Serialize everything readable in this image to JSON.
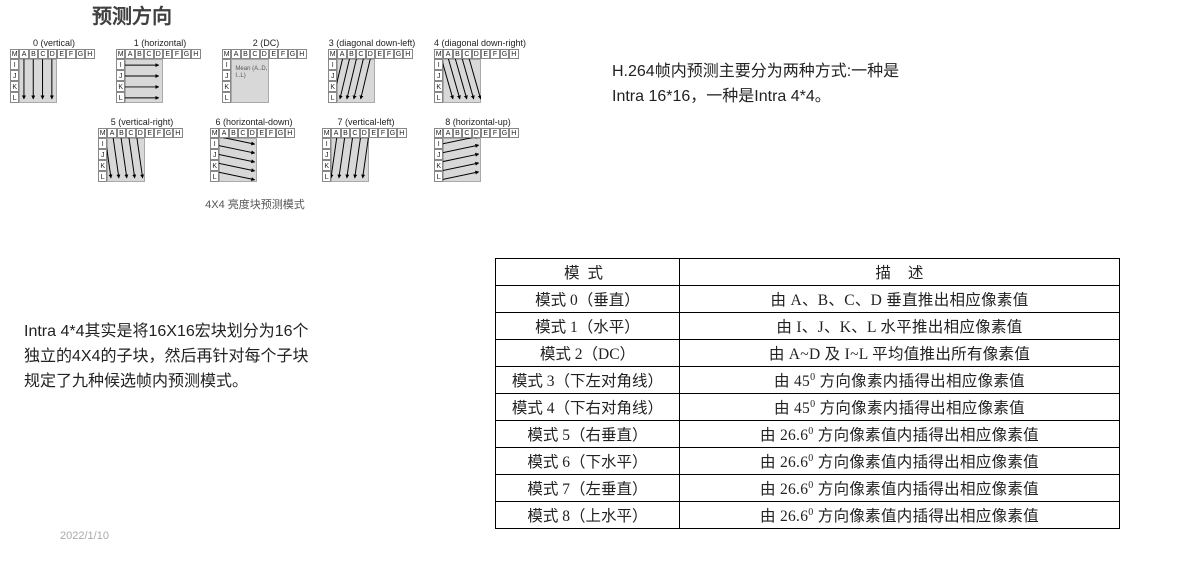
{
  "title": "预测方向",
  "diagram": {
    "caption": "4X4 亮度块预测模式",
    "top_labels": [
      "M",
      "A",
      "B",
      "C",
      "D",
      "E",
      "F",
      "G",
      "H"
    ],
    "left_labels": [
      "I",
      "J",
      "K",
      "L"
    ],
    "dc_text": "Mean (A..D, I..L)",
    "modes_row1": [
      {
        "label": "0 (vertical)",
        "dir": "v"
      },
      {
        "label": "1 (horizontal)",
        "dir": "h"
      },
      {
        "label": "2 (DC)",
        "dir": "dc"
      },
      {
        "label": "3 (diagonal down-left)",
        "dir": "ddl"
      },
      {
        "label": "4 (diagonal down-right)",
        "dir": "ddr"
      }
    ],
    "modes_row2": [
      {
        "label": "5 (vertical-right)",
        "dir": "vr"
      },
      {
        "label": "6 (horizontal-down)",
        "dir": "hd"
      },
      {
        "label": "7 (vertical-left)",
        "dir": "vl"
      },
      {
        "label": "8 (horizontal-up)",
        "dir": "hu"
      }
    ]
  },
  "text1": "H.264帧内预测主要分为两种方式:一种是Intra 16*16，一种是Intra 4*4。",
  "text2": "Intra 4*4其实是将16X16宏块划分为16个独立的4X4的子块，然后再针对每个子块规定了九种候选帧内预测模式。",
  "date": "2022/1/10",
  "table": {
    "header_mode": "模式",
    "header_desc_1": "描",
    "header_desc_2": "述",
    "rows": [
      {
        "mode": "模式 0（垂直）",
        "desc": "由 A、B、C、D 垂直推出相应像素值"
      },
      {
        "mode": "模式 1（水平）",
        "desc": "由 I、J、K、L 水平推出相应像素值"
      },
      {
        "mode": "模式 2（DC）",
        "desc": "由 A~D 及 I~L 平均值推出所有像素值"
      },
      {
        "mode": "模式 3（下左对角线）",
        "desc": "由 45<sup>0</sup> 方向像素内插得出相应像素值"
      },
      {
        "mode": "模式 4（下右对角线）",
        "desc": "由 45<sup>0</sup> 方向像素内插得出相应像素值"
      },
      {
        "mode": "模式 5（右垂直）",
        "desc": "由 26.6<sup>0</sup> 方向像素值内插得出相应像素值"
      },
      {
        "mode": "模式 6（下水平）",
        "desc": "由 26.6<sup>0</sup> 方向像素值内插得出相应像素值"
      },
      {
        "mode": "模式 7（左垂直）",
        "desc": "由 26.6<sup>0</sup> 方向像素值内插得出相应像素值"
      },
      {
        "mode": "模式 8（上水平）",
        "desc": "由 26.6<sup>0</sup> 方向像素值内插得出相应像素值"
      }
    ]
  },
  "colors": {
    "arrow": "#000000",
    "pixel_bg": "#d8d8d8"
  }
}
